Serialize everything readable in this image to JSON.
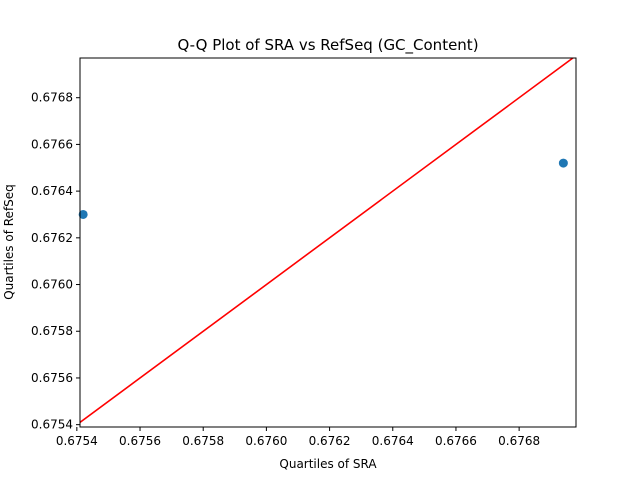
{
  "chart_data": {
    "type": "scatter",
    "title": "Q-Q Plot of SRA vs RefSeq (GC_Content)",
    "xlabel": "Quartiles of SRA",
    "ylabel": "Quartiles of RefSeq",
    "xlim": [
      0.67541,
      0.67698
    ],
    "ylim": [
      0.67539,
      0.67697
    ],
    "x_ticks": [
      "0.6754",
      "0.6756",
      "0.6758",
      "0.6760",
      "0.6762",
      "0.6764",
      "0.6766",
      "0.6768"
    ],
    "y_ticks": [
      "0.6754",
      "0.6756",
      "0.6758",
      "0.6760",
      "0.6762",
      "0.6764",
      "0.6766",
      "0.6768"
    ],
    "x_tick_values": [
      0.6754,
      0.6756,
      0.6758,
      0.676,
      0.6762,
      0.6764,
      0.6766,
      0.6768
    ],
    "y_tick_values": [
      0.6754,
      0.6756,
      0.6758,
      0.676,
      0.6762,
      0.6764,
      0.6766,
      0.6768
    ],
    "points": [
      {
        "x": 0.67542,
        "y": 0.6763
      },
      {
        "x": 0.67694,
        "y": 0.67652
      }
    ],
    "reference_line": {
      "from": 0.67539,
      "to": 0.67698
    },
    "grid": false,
    "colors": {
      "points": "#1f77b4",
      "line": "#ff0000"
    }
  }
}
